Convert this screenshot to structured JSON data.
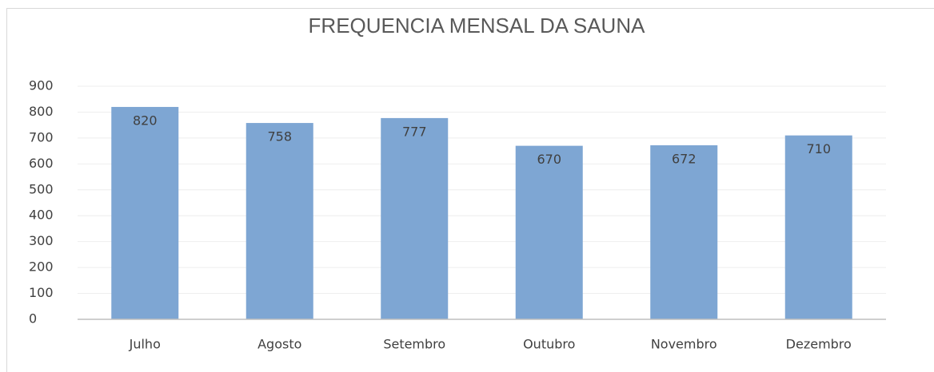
{
  "chart_data": {
    "type": "bar",
    "title": "FREQUENCIA MENSAL DA SAUNA",
    "categories": [
      "Julho",
      "Agosto",
      "Setembro",
      "Outubro",
      "Novembro",
      "Dezembro"
    ],
    "values": [
      820,
      758,
      777,
      670,
      672,
      710
    ],
    "color": "#7ea6d3",
    "ylim": [
      0,
      900
    ],
    "yticks": [
      0,
      100,
      200,
      300,
      400,
      500,
      600,
      700,
      800,
      900
    ],
    "grid": true
  }
}
